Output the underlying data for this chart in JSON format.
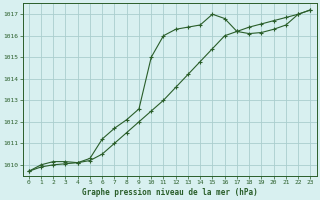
{
  "title": "Graphe pression niveau de la mer (hPa)",
  "bg_color": "#d8f0f0",
  "grid_color": "#aacece",
  "line_color": "#2a5e2a",
  "xlim": [
    -0.5,
    23.5
  ],
  "ylim": [
    1009.5,
    1017.5
  ],
  "yticks": [
    1010,
    1011,
    1012,
    1013,
    1014,
    1015,
    1016,
    1017
  ],
  "xticks": [
    0,
    1,
    2,
    3,
    4,
    5,
    6,
    7,
    8,
    9,
    10,
    11,
    12,
    13,
    14,
    15,
    16,
    17,
    18,
    19,
    20,
    21,
    22,
    23
  ],
  "main_x": [
    0,
    1,
    2,
    3,
    4,
    5,
    6,
    7,
    8,
    9,
    10,
    11,
    12,
    13,
    14,
    15,
    16,
    17,
    18,
    19,
    20,
    21,
    22,
    23
  ],
  "main_y": [
    1009.7,
    1010.0,
    1010.15,
    1010.15,
    1010.1,
    1010.3,
    1011.2,
    1011.7,
    1012.1,
    1012.6,
    1015.0,
    1016.0,
    1016.3,
    1016.4,
    1016.5,
    1017.0,
    1016.8,
    1016.2,
    1016.1,
    1016.15,
    1016.3,
    1016.5,
    1017.0,
    1017.2
  ],
  "trend_x": [
    0,
    1,
    2,
    3,
    4,
    5,
    6,
    7,
    8,
    9,
    10,
    11,
    12,
    13,
    14,
    15,
    16,
    17,
    18,
    19,
    20,
    21,
    22,
    23
  ],
  "trend_y": [
    1009.7,
    1009.9,
    1010.0,
    1010.05,
    1010.1,
    1010.2,
    1010.5,
    1011.0,
    1011.5,
    1012.0,
    1012.5,
    1013.0,
    1013.6,
    1014.2,
    1014.8,
    1015.4,
    1016.0,
    1016.2,
    1016.4,
    1016.55,
    1016.7,
    1016.85,
    1017.0,
    1017.2
  ]
}
